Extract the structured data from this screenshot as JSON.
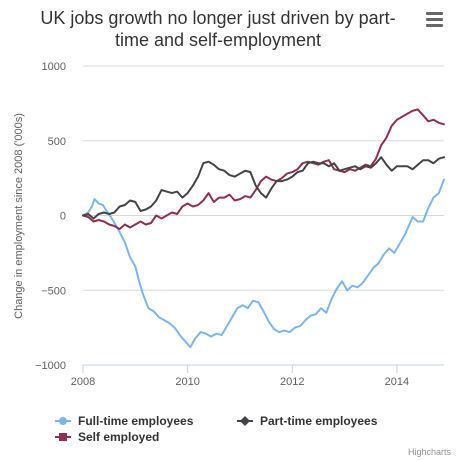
{
  "menu_icon": "hamburger-menu-icon",
  "chart_data": {
    "type": "line",
    "title_lines": [
      "UK jobs growth no longer just driven by part-",
      "time and self-employment"
    ],
    "ylabel": "Change in employment since 2008 ('000s)",
    "xlabel": "",
    "xlim": [
      2008.0,
      2014.9
    ],
    "ylim": [
      -1000,
      1000
    ],
    "x_ticks": [
      2008,
      2010,
      2012,
      2014
    ],
    "x_tick_labels": [
      "2008",
      "2010",
      "2012",
      "2014"
    ],
    "y_ticks": [
      1000,
      500,
      0,
      -500,
      -1000
    ],
    "y_tick_labels": [
      "1000",
      "500",
      "0",
      "−500",
      "−1000"
    ],
    "grid": "horizontal",
    "legend_position": "bottom",
    "credits": "Highcharts",
    "series": [
      {
        "name": "Full-time employees",
        "color": "#7cb5ec",
        "marker": "circle",
        "points": [
          [
            2008.0,
            0
          ],
          [
            2008.1,
            20
          ],
          [
            2008.17,
            60
          ],
          [
            2008.22,
            110
          ],
          [
            2008.3,
            80
          ],
          [
            2008.38,
            70
          ],
          [
            2008.45,
            30
          ],
          [
            2008.55,
            -20
          ],
          [
            2008.62,
            -60
          ],
          [
            2008.7,
            -110
          ],
          [
            2008.8,
            -180
          ],
          [
            2008.9,
            -280
          ],
          [
            2009.0,
            -340
          ],
          [
            2009.08,
            -450
          ],
          [
            2009.15,
            -530
          ],
          [
            2009.25,
            -620
          ],
          [
            2009.35,
            -640
          ],
          [
            2009.45,
            -680
          ],
          [
            2009.55,
            -700
          ],
          [
            2009.65,
            -720
          ],
          [
            2009.75,
            -750
          ],
          [
            2009.85,
            -800
          ],
          [
            2009.95,
            -840
          ],
          [
            2010.05,
            -880
          ],
          [
            2010.15,
            -820
          ],
          [
            2010.25,
            -780
          ],
          [
            2010.35,
            -790
          ],
          [
            2010.45,
            -810
          ],
          [
            2010.55,
            -790
          ],
          [
            2010.65,
            -800
          ],
          [
            2010.75,
            -740
          ],
          [
            2010.85,
            -680
          ],
          [
            2010.95,
            -620
          ],
          [
            2011.05,
            -600
          ],
          [
            2011.15,
            -620
          ],
          [
            2011.25,
            -570
          ],
          [
            2011.35,
            -580
          ],
          [
            2011.45,
            -640
          ],
          [
            2011.55,
            -710
          ],
          [
            2011.65,
            -760
          ],
          [
            2011.75,
            -780
          ],
          [
            2011.85,
            -770
          ],
          [
            2011.95,
            -780
          ],
          [
            2012.05,
            -750
          ],
          [
            2012.15,
            -740
          ],
          [
            2012.25,
            -700
          ],
          [
            2012.35,
            -670
          ],
          [
            2012.45,
            -660
          ],
          [
            2012.55,
            -620
          ],
          [
            2012.65,
            -650
          ],
          [
            2012.75,
            -560
          ],
          [
            2012.85,
            -490
          ],
          [
            2012.95,
            -440
          ],
          [
            2013.05,
            -500
          ],
          [
            2013.15,
            -470
          ],
          [
            2013.25,
            -480
          ],
          [
            2013.35,
            -450
          ],
          [
            2013.45,
            -400
          ],
          [
            2013.55,
            -350
          ],
          [
            2013.65,
            -320
          ],
          [
            2013.75,
            -260
          ],
          [
            2013.85,
            -220
          ],
          [
            2013.95,
            -250
          ],
          [
            2014.05,
            -190
          ],
          [
            2014.15,
            -130
          ],
          [
            2014.25,
            -50
          ],
          [
            2014.3,
            -10
          ],
          [
            2014.4,
            -40
          ],
          [
            2014.5,
            -40
          ],
          [
            2014.6,
            50
          ],
          [
            2014.7,
            120
          ],
          [
            2014.8,
            150
          ],
          [
            2014.9,
            240
          ]
        ]
      },
      {
        "name": "Part-time employees",
        "color": "#434348",
        "marker": "diamond",
        "points": [
          [
            2008.0,
            0
          ],
          [
            2008.1,
            10
          ],
          [
            2008.2,
            -20
          ],
          [
            2008.3,
            10
          ],
          [
            2008.4,
            20
          ],
          [
            2008.5,
            10
          ],
          [
            2008.6,
            20
          ],
          [
            2008.7,
            60
          ],
          [
            2008.8,
            70
          ],
          [
            2008.9,
            100
          ],
          [
            2009.0,
            90
          ],
          [
            2009.1,
            30
          ],
          [
            2009.2,
            40
          ],
          [
            2009.3,
            60
          ],
          [
            2009.4,
            100
          ],
          [
            2009.5,
            170
          ],
          [
            2009.6,
            160
          ],
          [
            2009.7,
            150
          ],
          [
            2009.8,
            160
          ],
          [
            2009.9,
            120
          ],
          [
            2010.0,
            150
          ],
          [
            2010.1,
            200
          ],
          [
            2010.2,
            260
          ],
          [
            2010.3,
            350
          ],
          [
            2010.4,
            360
          ],
          [
            2010.5,
            340
          ],
          [
            2010.6,
            310
          ],
          [
            2010.7,
            300
          ],
          [
            2010.8,
            270
          ],
          [
            2010.9,
            260
          ],
          [
            2011.0,
            280
          ],
          [
            2011.1,
            300
          ],
          [
            2011.2,
            290
          ],
          [
            2011.3,
            200
          ],
          [
            2011.4,
            150
          ],
          [
            2011.5,
            120
          ],
          [
            2011.6,
            180
          ],
          [
            2011.7,
            230
          ],
          [
            2011.8,
            230
          ],
          [
            2011.9,
            240
          ],
          [
            2012.0,
            260
          ],
          [
            2012.1,
            290
          ],
          [
            2012.2,
            300
          ],
          [
            2012.3,
            350
          ],
          [
            2012.4,
            360
          ],
          [
            2012.5,
            350
          ],
          [
            2012.6,
            350
          ],
          [
            2012.7,
            330
          ],
          [
            2012.8,
            350
          ],
          [
            2012.9,
            300
          ],
          [
            2013.0,
            310
          ],
          [
            2013.1,
            320
          ],
          [
            2013.2,
            330
          ],
          [
            2013.3,
            310
          ],
          [
            2013.4,
            330
          ],
          [
            2013.5,
            320
          ],
          [
            2013.6,
            350
          ],
          [
            2013.7,
            390
          ],
          [
            2013.8,
            340
          ],
          [
            2013.9,
            300
          ],
          [
            2014.0,
            330
          ],
          [
            2014.1,
            330
          ],
          [
            2014.2,
            330
          ],
          [
            2014.3,
            310
          ],
          [
            2014.4,
            340
          ],
          [
            2014.5,
            370
          ],
          [
            2014.6,
            370
          ],
          [
            2014.7,
            350
          ],
          [
            2014.8,
            380
          ],
          [
            2014.9,
            390
          ]
        ]
      },
      {
        "name": "Self employed",
        "color": "#90304d",
        "marker": "square",
        "points": [
          [
            2008.0,
            0
          ],
          [
            2008.1,
            -10
          ],
          [
            2008.2,
            -40
          ],
          [
            2008.3,
            -30
          ],
          [
            2008.4,
            -40
          ],
          [
            2008.5,
            -60
          ],
          [
            2008.6,
            -70
          ],
          [
            2008.7,
            -90
          ],
          [
            2008.8,
            -60
          ],
          [
            2008.9,
            -80
          ],
          [
            2009.0,
            -60
          ],
          [
            2009.1,
            -40
          ],
          [
            2009.2,
            -60
          ],
          [
            2009.3,
            -50
          ],
          [
            2009.4,
            0
          ],
          [
            2009.5,
            -20
          ],
          [
            2009.6,
            0
          ],
          [
            2009.7,
            20
          ],
          [
            2009.8,
            10
          ],
          [
            2009.9,
            60
          ],
          [
            2010.0,
            80
          ],
          [
            2010.1,
            60
          ],
          [
            2010.2,
            70
          ],
          [
            2010.3,
            100
          ],
          [
            2010.4,
            150
          ],
          [
            2010.5,
            90
          ],
          [
            2010.6,
            120
          ],
          [
            2010.7,
            120
          ],
          [
            2010.8,
            140
          ],
          [
            2010.9,
            100
          ],
          [
            2011.0,
            110
          ],
          [
            2011.1,
            130
          ],
          [
            2011.2,
            120
          ],
          [
            2011.3,
            170
          ],
          [
            2011.4,
            230
          ],
          [
            2011.5,
            260
          ],
          [
            2011.6,
            240
          ],
          [
            2011.7,
            230
          ],
          [
            2011.8,
            250
          ],
          [
            2011.9,
            280
          ],
          [
            2012.0,
            290
          ],
          [
            2012.1,
            310
          ],
          [
            2012.2,
            350
          ],
          [
            2012.3,
            360
          ],
          [
            2012.4,
            350
          ],
          [
            2012.5,
            340
          ],
          [
            2012.6,
            360
          ],
          [
            2012.7,
            370
          ],
          [
            2012.8,
            310
          ],
          [
            2012.9,
            300
          ],
          [
            2013.0,
            290
          ],
          [
            2013.1,
            310
          ],
          [
            2013.2,
            300
          ],
          [
            2013.3,
            320
          ],
          [
            2013.4,
            340
          ],
          [
            2013.5,
            330
          ],
          [
            2013.6,
            380
          ],
          [
            2013.7,
            470
          ],
          [
            2013.8,
            520
          ],
          [
            2013.9,
            600
          ],
          [
            2014.0,
            640
          ],
          [
            2014.1,
            660
          ],
          [
            2014.2,
            680
          ],
          [
            2014.3,
            700
          ],
          [
            2014.4,
            710
          ],
          [
            2014.5,
            670
          ],
          [
            2014.6,
            630
          ],
          [
            2014.7,
            640
          ],
          [
            2014.8,
            620
          ],
          [
            2014.9,
            610
          ]
        ]
      }
    ]
  }
}
